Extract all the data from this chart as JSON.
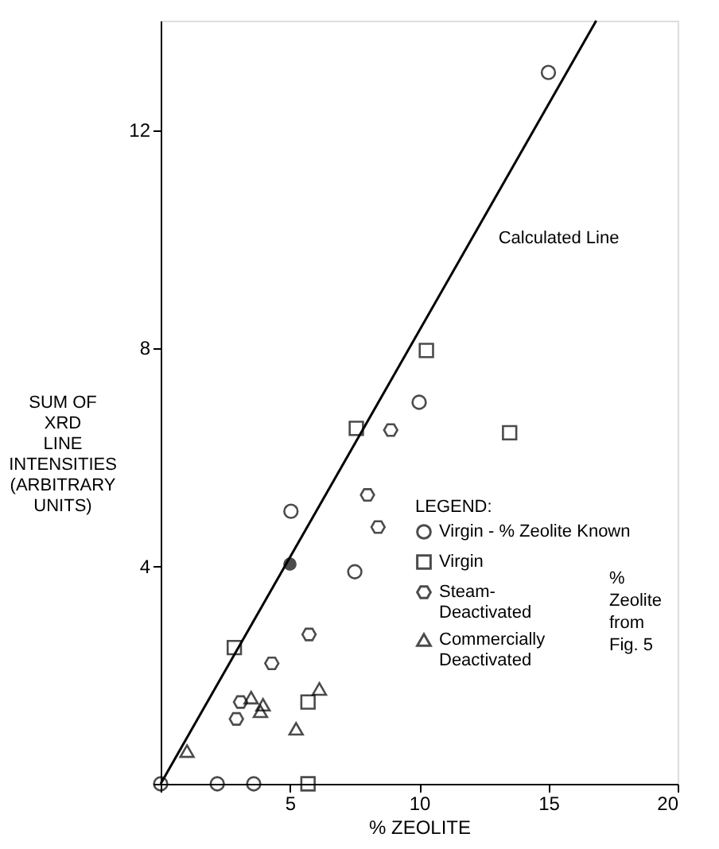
{
  "chart_data": {
    "type": "scatter",
    "xlabel": "% ZEOLITE",
    "ylabel": "SUM OF\nXRD\nLINE\nINTENSITIES\n(ARBITRARY\nUNITS)",
    "legend_title": "LEGEND:",
    "legend": "bottom right",
    "grid": false,
    "xlim": [
      0,
      20
    ],
    "xticks": [
      {
        "value": 0,
        "label": null
      },
      5,
      10,
      15,
      20
    ],
    "ylim": [
      0,
      14
    ],
    "yticks": [
      {
        "value": 0,
        "label": null
      },
      4,
      8,
      12
    ],
    "series": [
      {
        "name": "Virgin - % Zeolite Known",
        "marker": "circle",
        "color": "#000000",
        "x": [
          15.0,
          10.0,
          5.04,
          7.51,
          0,
          2.19,
          3.6
        ],
        "values": [
          13.05,
          7.0,
          5.0,
          3.89,
          0,
          0,
          0
        ]
      },
      {
        "name": "Virgin",
        "marker": "square",
        "color": "#000000",
        "x": [
          10.28,
          7.57,
          13.5,
          2.85,
          5.7,
          5.7
        ],
        "values": [
          7.95,
          6.52,
          6.44,
          2.5,
          1.5,
          0
        ]
      },
      {
        "name": "Steam-Deactivated",
        "color": "#000000",
        "x": [
          8.9,
          8.0,
          8.41,
          5.74,
          4.3,
          3.09,
          2.93
        ],
        "values": [
          6.49,
          5.3,
          4.71,
          2.74,
          2.21,
          1.5,
          1.19
        ]
      },
      {
        "name": "Commercially Deactivated",
        "marker": "triangle",
        "color": "#000000",
        "x": [
          1.02,
          3.5,
          3.96,
          3.86,
          6.14,
          5.24
        ],
        "values": [
          0.6,
          1.58,
          1.45,
          1.33,
          1.74,
          1.01
        ]
      },
      {
        "marker": "circle",
        "color": "#000000",
        "x": [
          5.0
        ],
        "values": [
          4.03
        ]
      },
      {
        "type": "line",
        "color": "#000000",
        "marker": "none",
        "line_style": "solid",
        "x": [
          0,
          16.85
        ],
        "values": [
          0,
          14.0
        ]
      }
    ],
    "annotations": [
      {
        "text": "Calculated Line",
        "x": 12.33,
        "y": 10.24
      },
      "% Zeolite from Fig. 5"
    ]
  }
}
